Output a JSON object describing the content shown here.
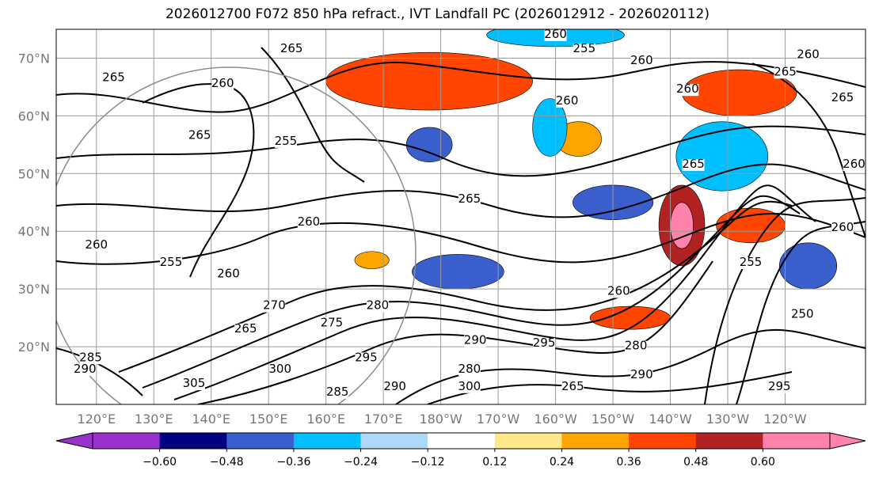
{
  "title": "2026012700 F072 850 hPa refract., IVT Landfall PC (2026012912 - 2026020112)",
  "chart_data": {
    "type": "heatmap",
    "title": "2026012700 F072 850 hPa refract., IVT Landfall PC (2026012912 - 2026020112)",
    "lat_ticks": [
      "70°N",
      "60°N",
      "50°N",
      "40°N",
      "30°N",
      "20°N"
    ],
    "lat_values": [
      70,
      60,
      50,
      40,
      30,
      20
    ],
    "lon_ticks": [
      "120°E",
      "130°E",
      "140°E",
      "150°E",
      "160°E",
      "170°E",
      "180°W",
      "170°W",
      "160°W",
      "150°W",
      "140°W",
      "130°W",
      "120°W"
    ],
    "lon_values": [
      120,
      130,
      140,
      150,
      160,
      170,
      180,
      190,
      200,
      210,
      220,
      230,
      240
    ],
    "xlim": [
      113,
      254
    ],
    "ylim": [
      10,
      75
    ],
    "colorbar": {
      "ticks": [
        "-0.60",
        "-0.48",
        "-0.36",
        "-0.24",
        "-0.12",
        "0.12",
        "0.24",
        "0.36",
        "0.48",
        "0.60"
      ],
      "tick_values": [
        -0.6,
        -0.48,
        -0.36,
        -0.24,
        -0.12,
        0.12,
        0.24,
        0.36,
        0.48,
        0.6
      ],
      "colors": [
        "#9932cc",
        "#000080",
        "#3a5fcd",
        "#00bfff",
        "#add8f7",
        "#ffffff",
        "#ffe88a",
        "#ffa500",
        "#ff4500",
        "#b22222",
        "#ff82ab"
      ],
      "extend": "both"
    },
    "contour_labels": [
      {
        "text": "260",
        "lon": 200,
        "lat": 73.5
      },
      {
        "text": "255",
        "lon": 205,
        "lat": 71
      },
      {
        "text": "260",
        "lon": 215,
        "lat": 69
      },
      {
        "text": "260",
        "lon": 244,
        "lat": 70
      },
      {
        "text": "265",
        "lon": 240,
        "lat": 67
      },
      {
        "text": "265",
        "lon": 250,
        "lat": 62.5
      },
      {
        "text": "265",
        "lon": 154,
        "lat": 71
      },
      {
        "text": "265",
        "lon": 123,
        "lat": 66
      },
      {
        "text": "260",
        "lon": 142,
        "lat": 65
      },
      {
        "text": "260",
        "lon": 223,
        "lat": 64
      },
      {
        "text": "260",
        "lon": 202,
        "lat": 62
      },
      {
        "text": "265",
        "lon": 138,
        "lat": 56
      },
      {
        "text": "255",
        "lon": 153,
        "lat": 55
      },
      {
        "text": "265",
        "lon": 224,
        "lat": 51
      },
      {
        "text": "260",
        "lon": 252,
        "lat": 51
      },
      {
        "text": "265",
        "lon": 185,
        "lat": 45
      },
      {
        "text": "260",
        "lon": 157,
        "lat": 41
      },
      {
        "text": "260",
        "lon": 250,
        "lat": 40
      },
      {
        "text": "260",
        "lon": 120,
        "lat": 37
      },
      {
        "text": "255",
        "lon": 133,
        "lat": 34
      },
      {
        "text": "255",
        "lon": 234,
        "lat": 34
      },
      {
        "text": "260",
        "lon": 143,
        "lat": 32
      },
      {
        "text": "270",
        "lon": 151,
        "lat": 26.5
      },
      {
        "text": "280",
        "lon": 169,
        "lat": 26.5
      },
      {
        "text": "275",
        "lon": 161,
        "lat": 23.5
      },
      {
        "text": "260",
        "lon": 211,
        "lat": 29
      },
      {
        "text": "265",
        "lon": 146,
        "lat": 22.5
      },
      {
        "text": "250",
        "lon": 243,
        "lat": 25
      },
      {
        "text": "290",
        "lon": 186,
        "lat": 20.5
      },
      {
        "text": "295",
        "lon": 198,
        "lat": 20
      },
      {
        "text": "280",
        "lon": 214,
        "lat": 19.5
      },
      {
        "text": "295",
        "lon": 167,
        "lat": 17.5
      },
      {
        "text": "285",
        "lon": 119,
        "lat": 17.5
      },
      {
        "text": "290",
        "lon": 118,
        "lat": 15.5
      },
      {
        "text": "280",
        "lon": 185,
        "lat": 15.5
      },
      {
        "text": "290",
        "lon": 215,
        "lat": 14.5
      },
      {
        "text": "265",
        "lon": 203,
        "lat": 12.5
      },
      {
        "text": "295",
        "lon": 239,
        "lat": 12.5
      },
      {
        "text": "305",
        "lon": 137,
        "lat": 13
      },
      {
        "text": "300",
        "lon": 152,
        "lat": 15.5
      },
      {
        "text": "285",
        "lon": 162,
        "lat": 11.5
      },
      {
        "text": "300",
        "lon": 185,
        "lat": 12.5
      },
      {
        "text": "290",
        "lon": 172,
        "lat": 12.5
      }
    ],
    "shaded_regions": [
      {
        "value": 0.42,
        "lon": 178,
        "lat": 66,
        "rx": 18,
        "ry": 5
      },
      {
        "value": 0.42,
        "lon": 232,
        "lat": 64,
        "rx": 10,
        "ry": 4
      },
      {
        "value": 0.48,
        "lon": 222,
        "lat": 41,
        "rx": 4,
        "ry": 7
      },
      {
        "value": 0.66,
        "lon": 222,
        "lat": 41,
        "rx": 2,
        "ry": 4
      },
      {
        "value": 0.42,
        "lon": 234,
        "lat": 41,
        "rx": 6,
        "ry": 3
      },
      {
        "value": 0.36,
        "lon": 213,
        "lat": 25,
        "rx": 7,
        "ry": 2
      },
      {
        "value": 0.3,
        "lon": 204,
        "lat": 56,
        "rx": 4,
        "ry": 3
      },
      {
        "value": -0.4,
        "lon": 183,
        "lat": 33,
        "rx": 8,
        "ry": 3
      },
      {
        "value": -0.4,
        "lon": 210,
        "lat": 45,
        "rx": 7,
        "ry": 3
      },
      {
        "value": -0.42,
        "lon": 178,
        "lat": 55,
        "rx": 4,
        "ry": 3
      },
      {
        "value": -0.36,
        "lon": 229,
        "lat": 53,
        "rx": 8,
        "ry": 6
      },
      {
        "value": -0.4,
        "lon": 244,
        "lat": 34,
        "rx": 5,
        "ry": 4
      },
      {
        "value": -0.3,
        "lon": 200,
        "lat": 74,
        "rx": 12,
        "ry": 2
      },
      {
        "value": -0.3,
        "lon": 199,
        "lat": 58,
        "rx": 3,
        "ry": 5
      },
      {
        "value": 0.3,
        "lon": 168,
        "lat": 35,
        "rx": 3,
        "ry": 1.5
      }
    ]
  }
}
